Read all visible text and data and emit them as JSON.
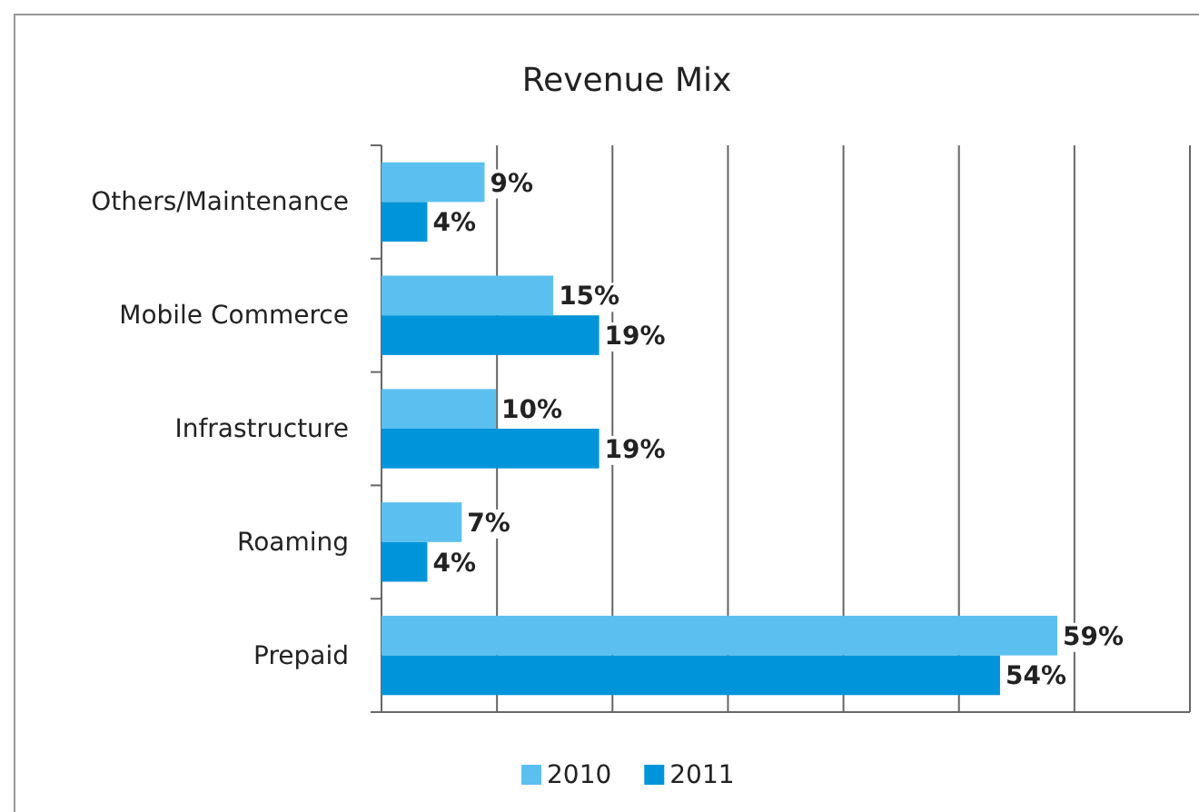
{
  "chart_data": {
    "type": "bar",
    "title": "Revenue Mix",
    "orientation": "horizontal",
    "categories": [
      "Others/Maintenance",
      "Mobile Commerce",
      "Infrastructure",
      "Roaming",
      "Prepaid"
    ],
    "series": [
      {
        "name": "2010",
        "color": "#5bc0ef",
        "values": [
          9,
          15,
          10,
          7,
          59
        ],
        "value_labels": [
          "9%",
          "15%",
          "10%",
          "7%",
          "59%"
        ]
      },
      {
        "name": "2011",
        "color": "#0095da",
        "values": [
          4,
          19,
          19,
          4,
          54
        ],
        "value_labels": [
          "4%",
          "19%",
          "19%",
          "4%",
          "54%"
        ]
      }
    ],
    "grid": "x",
    "legend": "bottom"
  }
}
